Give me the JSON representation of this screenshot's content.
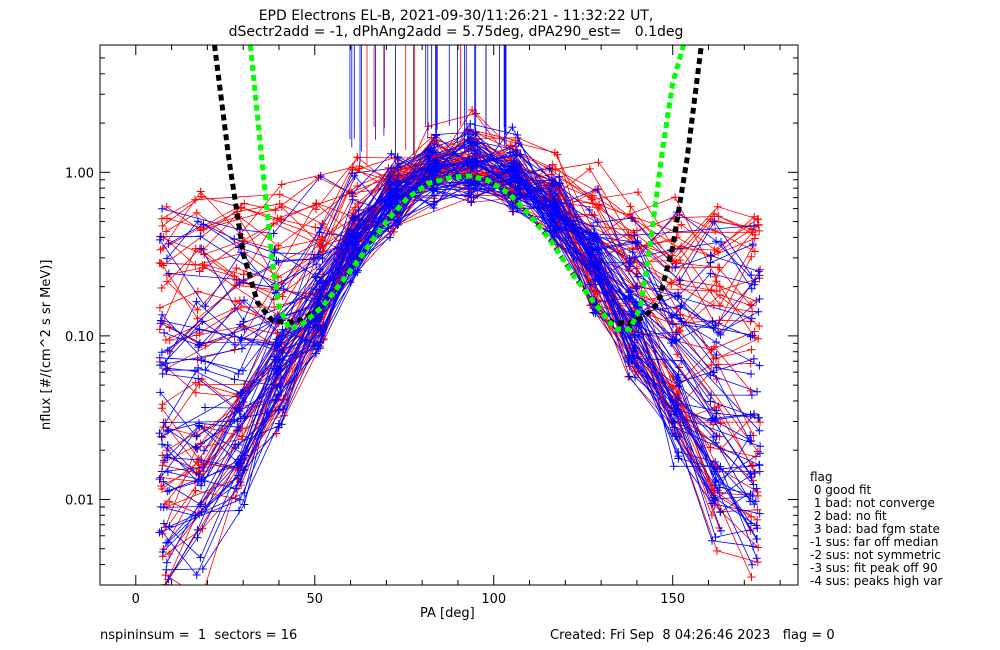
{
  "title_line1": "EPD Electrons EL-B, 2021-09-30/11:26:21 - 11:32:22 UT,",
  "title_line2": "dSectr2add = -1, dPhAng2add = 5.75deg, dPA290_est=   0.1deg",
  "footer_left": "nspininsum =  1  sectors = 16",
  "footer_right": "Created: Fri Sep  8 04:26:46 2023   flag = 0",
  "legend": {
    "title": "flag",
    "items": [
      " 0 good fit",
      " 1 bad: not converge",
      " 2 bad: no fit",
      " 3 bad: bad fgm state",
      "-1 sus: far off median",
      "-2 sus: not symmetric",
      "-3 sus: fit peak off 90",
      "-4 sus: peaks high var"
    ]
  },
  "chart_data": {
    "type": "line",
    "xlabel": "PA [deg]",
    "ylabel": "nflux [#/(cm^2 s sr MeV)]",
    "xlim": [
      -10,
      185
    ],
    "ylim": [
      0.003,
      6.0
    ],
    "yscale": "log",
    "xticks": [
      0,
      50,
      100,
      150
    ],
    "xtick_labels": [
      "0",
      "50",
      "100",
      "150"
    ],
    "yticks": [
      0.01,
      0.1,
      1.0
    ],
    "ytick_labels": [
      "0.01",
      "0.10",
      "1.00"
    ],
    "pa_bins": [
      8,
      18,
      29,
      40,
      51,
      61,
      72,
      83,
      94,
      106,
      117,
      128,
      139,
      151,
      162,
      173
    ],
    "series": [
      {
        "color": "#ff0000",
        "n_spectra": 55
      },
      {
        "color": "#0000ff",
        "n_spectra": 55
      }
    ],
    "fit_curves": [
      {
        "color": "#000000",
        "style": "dashed",
        "x": [
          22,
          26,
          30,
          34,
          38,
          42,
          46,
          52,
          58,
          64,
          70,
          76,
          82,
          88,
          93,
          98,
          104,
          110,
          116,
          122,
          128,
          133,
          138,
          142,
          146,
          150,
          154,
          158
        ],
        "y": [
          6.0,
          1.2,
          0.32,
          0.16,
          0.125,
          0.12,
          0.125,
          0.15,
          0.22,
          0.33,
          0.5,
          0.7,
          0.86,
          0.93,
          0.95,
          0.9,
          0.75,
          0.55,
          0.38,
          0.24,
          0.16,
          0.12,
          0.12,
          0.13,
          0.16,
          0.35,
          1.2,
          6.0
        ]
      },
      {
        "color": "#00ff00",
        "style": "dashed",
        "x": [
          32,
          34,
          36,
          38,
          40,
          43,
          47,
          52,
          58,
          64,
          70,
          76,
          82,
          88,
          93,
          98,
          104,
          110,
          116,
          122,
          128,
          134,
          138,
          141,
          144,
          147,
          150,
          153
        ],
        "y": [
          6.0,
          2.2,
          0.8,
          0.3,
          0.15,
          0.11,
          0.12,
          0.15,
          0.22,
          0.33,
          0.5,
          0.7,
          0.86,
          0.93,
          0.95,
          0.9,
          0.75,
          0.55,
          0.38,
          0.24,
          0.16,
          0.11,
          0.11,
          0.15,
          0.4,
          1.3,
          3.5,
          6.0
        ]
      }
    ],
    "spike_markers": {
      "color": "#0000ff",
      "x_range": [
        58,
        105
      ],
      "note": "vertical lines at top"
    }
  }
}
